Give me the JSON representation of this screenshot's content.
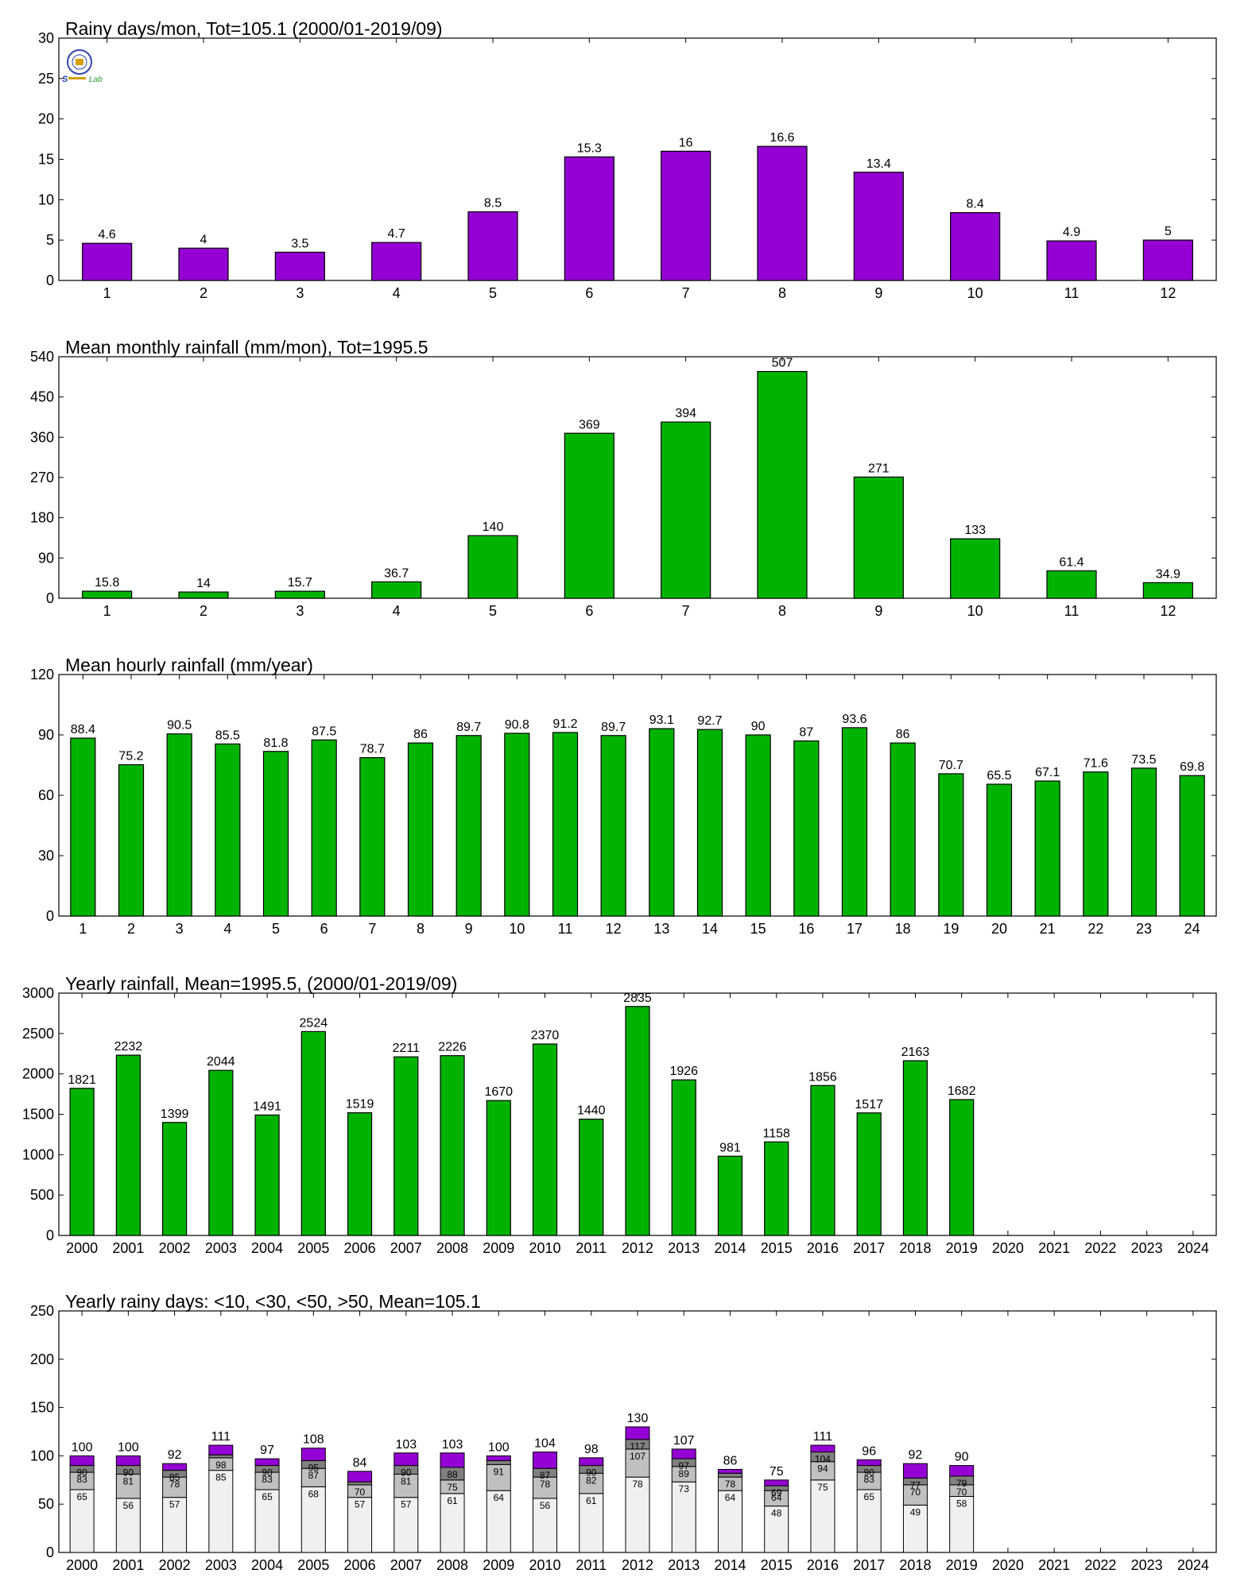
{
  "colors": {
    "purple": "#9400d3",
    "green": "#00b300",
    "stack_light": "#f0f0f0",
    "stack_mid": "#c0c0c0",
    "stack_dark": "#808080",
    "stack_top": "#9400d3",
    "axis": "#000000"
  },
  "logo": {
    "icon": "lab-logo-icon",
    "text": "Lab"
  },
  "chart_data": [
    {
      "type": "bar",
      "title": "Rainy days/mon, Tot=105.1 (2000/01-2019/09)",
      "xlabel": "",
      "ylabel": "",
      "categories": [
        "1",
        "2",
        "3",
        "4",
        "5",
        "6",
        "7",
        "8",
        "9",
        "10",
        "11",
        "12"
      ],
      "values": [
        4.6,
        4,
        3.5,
        4.7,
        8.5,
        15.3,
        16,
        16.6,
        13.4,
        8.4,
        4.9,
        5
      ],
      "labels": [
        "4.6",
        "4",
        "3.5",
        "4.7",
        "8.5",
        "15.3",
        "16",
        "16.6",
        "13.4",
        "8.4",
        "4.9",
        "5"
      ],
      "ylim": [
        0,
        30
      ],
      "yticks": [
        0,
        5,
        10,
        15,
        20,
        25,
        30
      ],
      "color": "#9400d3",
      "grid": false,
      "legend": "none"
    },
    {
      "type": "bar",
      "title": "Mean monthly rainfall (mm/mon), Tot=1995.5",
      "xlabel": "",
      "ylabel": "",
      "categories": [
        "1",
        "2",
        "3",
        "4",
        "5",
        "6",
        "7",
        "8",
        "9",
        "10",
        "11",
        "12"
      ],
      "values": [
        15.8,
        14,
        15.7,
        36.7,
        140,
        369,
        394,
        507,
        271,
        133,
        61.4,
        34.9
      ],
      "labels": [
        "15.8",
        "14",
        "15.7",
        "36.7",
        "140",
        "369",
        "394",
        "507",
        "271",
        "133",
        "61.4",
        "34.9"
      ],
      "ylim": [
        0,
        540
      ],
      "yticks": [
        0,
        90,
        180,
        270,
        360,
        450,
        540
      ],
      "color": "#00b300",
      "grid": false,
      "legend": "none"
    },
    {
      "type": "bar",
      "title": "Mean hourly rainfall (mm/year)",
      "xlabel": "",
      "ylabel": "",
      "categories": [
        "1",
        "2",
        "3",
        "4",
        "5",
        "6",
        "7",
        "8",
        "9",
        "10",
        "11",
        "12",
        "13",
        "14",
        "15",
        "16",
        "17",
        "18",
        "19",
        "20",
        "21",
        "22",
        "23",
        "24"
      ],
      "values": [
        88.4,
        75.2,
        90.5,
        85.5,
        81.8,
        87.5,
        78.7,
        86,
        89.7,
        90.8,
        91.2,
        89.7,
        93.1,
        92.7,
        90,
        87,
        93.6,
        86,
        70.7,
        65.5,
        67.1,
        71.6,
        73.5,
        69.8
      ],
      "labels": [
        "88.4",
        "75.2",
        "90.5",
        "85.5",
        "81.8",
        "87.5",
        "78.7",
        "86",
        "89.7",
        "90.8",
        "91.2",
        "89.7",
        "93.1",
        "92.7",
        "90",
        "87",
        "93.6",
        "86",
        "70.7",
        "65.5",
        "67.1",
        "71.6",
        "73.5",
        "69.8"
      ],
      "ylim": [
        0,
        120
      ],
      "yticks": [
        0,
        30,
        60,
        90,
        120
      ],
      "color": "#00b300",
      "grid": false,
      "legend": "none"
    },
    {
      "type": "bar",
      "title": "Yearly rainfall, Mean=1995.5, (2000/01-2019/09)",
      "xlabel": "",
      "ylabel": "",
      "categories": [
        "2000",
        "2001",
        "2002",
        "2003",
        "2004",
        "2005",
        "2006",
        "2007",
        "2008",
        "2009",
        "2010",
        "2011",
        "2012",
        "2013",
        "2014",
        "2015",
        "2016",
        "2017",
        "2018",
        "2019",
        "2020",
        "2021",
        "2022",
        "2023",
        "2024"
      ],
      "values": [
        1821,
        2232,
        1399,
        2044,
        1491,
        2524,
        1519,
        2211,
        2226,
        1670,
        2370,
        1440,
        2835,
        1926,
        981,
        1158,
        1856,
        1517,
        2163,
        1682,
        null,
        null,
        null,
        null,
        null
      ],
      "labels": [
        "1821",
        "2232",
        "1399",
        "2044",
        "1491",
        "2524",
        "1519",
        "2211",
        "2226",
        "1670",
        "2370",
        "1440",
        "2835",
        "1926",
        "981",
        "1158",
        "1856",
        "1517",
        "2163",
        "1682",
        "",
        "",
        "",
        "",
        ""
      ],
      "ylim": [
        0,
        3000
      ],
      "yticks": [
        0,
        500,
        1000,
        1500,
        2000,
        2500,
        3000
      ],
      "color": "#00b300",
      "grid": false,
      "legend": "none"
    },
    {
      "type": "bar",
      "stacked": true,
      "title": "Yearly rainy days: <10, <30, <50, >50, Mean=105.1",
      "xlabel": "",
      "ylabel": "",
      "categories": [
        "2000",
        "2001",
        "2002",
        "2003",
        "2004",
        "2005",
        "2006",
        "2007",
        "2008",
        "2009",
        "2010",
        "2011",
        "2012",
        "2013",
        "2014",
        "2015",
        "2016",
        "2017",
        "2018",
        "2019",
        "2020",
        "2021",
        "2022",
        "2023",
        "2024"
      ],
      "ylim": [
        0,
        250
      ],
      "yticks": [
        0,
        50,
        100,
        150,
        200,
        250
      ],
      "colors": [
        "#f0f0f0",
        "#c0c0c0",
        "#808080",
        "#9400d3"
      ],
      "grid": false,
      "legend": "none",
      "cumulative": {
        "lt10": [
          65,
          56,
          57,
          85,
          65,
          68,
          57,
          57,
          61,
          64,
          56,
          61,
          78,
          73,
          64,
          48,
          75,
          65,
          49,
          58,
          null,
          null,
          null,
          null,
          null
        ],
        "lt30": [
          83,
          81,
          78,
          98,
          83,
          87,
          70,
          81,
          75,
          91,
          78,
          82,
          107,
          89,
          78,
          64,
          94,
          83,
          70,
          70,
          null,
          null,
          null,
          null,
          null
        ],
        "lt50": [
          90,
          90,
          85,
          101,
          90,
          95,
          73,
          90,
          88,
          95,
          87,
          90,
          117,
          97,
          82,
          69,
          104,
          90,
          77,
          79,
          null,
          null,
          null,
          null,
          null
        ],
        "total": [
          100,
          100,
          92,
          111,
          97,
          108,
          84,
          103,
          103,
          100,
          104,
          98,
          130,
          107,
          86,
          75,
          111,
          96,
          92,
          90,
          null,
          null,
          null,
          null,
          null
        ]
      },
      "labels": {
        "lt10": [
          "65",
          "56",
          "57",
          "85",
          "65",
          "68",
          "57",
          "57",
          "61",
          "64",
          "56",
          "61",
          "78",
          "73",
          "64",
          "48",
          "75",
          "65",
          "49",
          "58",
          "",
          "",
          "",
          "",
          ""
        ],
        "lt30": [
          "83",
          "81",
          "78",
          "98",
          "83",
          "87",
          "70",
          "81",
          "75",
          "91",
          "78",
          "82",
          "107",
          "89",
          "78",
          "64",
          "94",
          "83",
          "70",
          "70",
          "",
          "",
          "",
          "",
          ""
        ],
        "lt50": [
          "90",
          "90",
          "85",
          "",
          "90",
          "95",
          "",
          "90",
          "88",
          "",
          "87",
          "90",
          "117",
          "97",
          "",
          "69",
          "104",
          "90",
          "77",
          "79",
          "",
          "",
          "",
          "",
          ""
        ],
        "total": [
          "100",
          "100",
          "92",
          "111",
          "97",
          "108",
          "84",
          "103",
          "103",
          "100",
          "104",
          "98",
          "130",
          "107",
          "86",
          "75",
          "111",
          "96",
          "92",
          "90",
          "",
          "",
          "",
          "",
          ""
        ]
      }
    }
  ]
}
